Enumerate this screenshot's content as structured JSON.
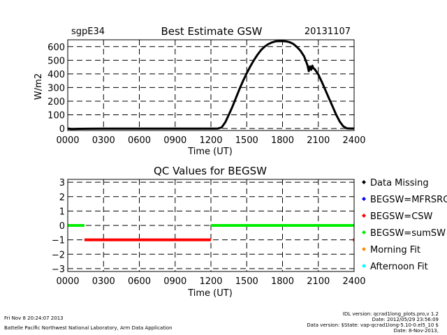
{
  "footer": {
    "timestamp": "Fri Nov  8 20:24:07 2013",
    "credit": "Battelle Pacific Northwest National Laboratory, Arm Data Application",
    "idl_version": "IDL version: qcrad1long_plots.pro,v 1.2",
    "date_line": "Date: 2012/05/29 23:56:09",
    "data_version": "Data version: $State: vap-qcrad1long-5.10-0.el5_10 $",
    "date2": "Date: 8-Nov-2013,"
  },
  "chart_data": [
    {
      "type": "line",
      "site": "sgpE34",
      "title": "Best Estimate GSW",
      "date": "20131107",
      "xlabel": "Time (UT)",
      "ylabel": "W/m2",
      "xlim": [
        0,
        2400
      ],
      "ylim": [
        -15,
        650
      ],
      "xticks": [
        "0000",
        "0300",
        "0600",
        "0900",
        "1200",
        "1500",
        "1800",
        "2100",
        "2400"
      ],
      "yticks": [
        "0",
        "100",
        "200",
        "300",
        "400",
        "500",
        "600"
      ],
      "grid": true,
      "series_color": "#000000",
      "x": [
        0,
        30,
        100,
        300,
        600,
        900,
        1200,
        1230,
        1260,
        1290,
        1320,
        1350,
        1380,
        1410,
        1440,
        1470,
        1500,
        1530,
        1560,
        1590,
        1620,
        1650,
        1680,
        1710,
        1740,
        1770,
        1800,
        1830,
        1860,
        1890,
        1920,
        1950,
        1980,
        2000,
        2010,
        2020,
        2030,
        2040,
        2050,
        2060,
        2070,
        2100,
        2130,
        2160,
        2190,
        2220,
        2250,
        2280,
        2310,
        2340,
        2370,
        2400
      ],
      "y": [
        0,
        -3,
        -2,
        -1,
        -1,
        -1,
        -1,
        -1,
        0,
        8,
        45,
        100,
        160,
        225,
        290,
        350,
        405,
        455,
        500,
        540,
        575,
        600,
        618,
        630,
        638,
        640,
        640,
        638,
        632,
        620,
        598,
        570,
        530,
        485,
        460,
        420,
        455,
        430,
        460,
        440,
        435,
        395,
        340,
        280,
        220,
        160,
        100,
        50,
        15,
        1,
        0,
        0
      ]
    },
    {
      "type": "scatter",
      "title": "QC Values for BEGSW",
      "xlabel": "Time (UT)",
      "ylabel": "",
      "xlim": [
        0,
        2400
      ],
      "ylim": [
        -3.2,
        3.2
      ],
      "xticks": [
        "0000",
        "0300",
        "0600",
        "0900",
        "1200",
        "1500",
        "1800",
        "2100",
        "2400"
      ],
      "yticks": [
        "3",
        "2",
        "1",
        "0",
        "−1",
        "−2",
        "−3"
      ],
      "grid": true,
      "legend_position": "right",
      "legend": [
        {
          "label": "Data Missing",
          "color": "#000000"
        },
        {
          "label": "BEGSW=MFRSRG",
          "color": "#0000ff"
        },
        {
          "label": "BEGSW=CSW",
          "color": "#ff0000"
        },
        {
          "label": "BEGSW=sumSW",
          "color": "#00ee00"
        },
        {
          "label": "Morning Fit",
          "color": "#ff8c00"
        },
        {
          "label": "Afternoon Fit",
          "color": "#00ffff"
        }
      ],
      "segments": [
        {
          "series": "BEGSW=sumSW",
          "x_start": 0,
          "x_end": 140,
          "y": 0,
          "color": "#00ee00"
        },
        {
          "series": "BEGSW=CSW",
          "x_start": 140,
          "x_end": 1200,
          "y": -1,
          "color": "#ff0000"
        },
        {
          "series": "BEGSW=sumSW",
          "x_start": 1200,
          "x_end": 2400,
          "y": 0,
          "color": "#00ee00"
        },
        {
          "series": "BEGSW=CSW",
          "x_start": 2390,
          "x_end": 2400,
          "y": -1,
          "color": "#ff0000"
        }
      ]
    }
  ]
}
